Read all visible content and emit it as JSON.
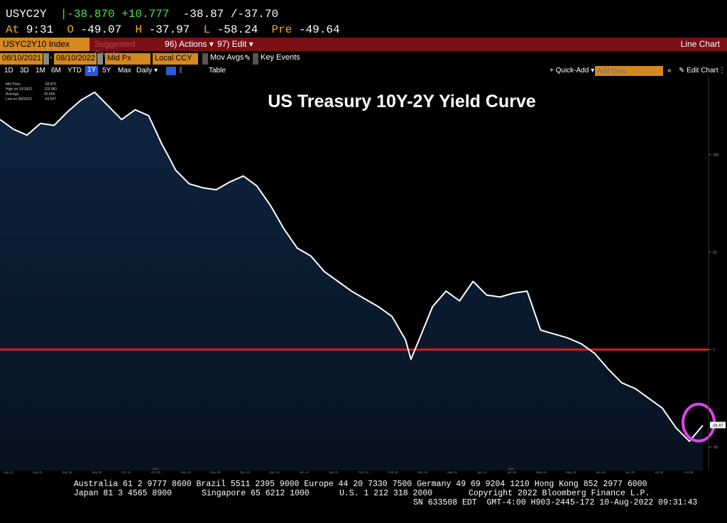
{
  "quote": {
    "symbol": "USYC2Y",
    "last": "|-38.870",
    "change": "+10.777",
    "bid": "-38.87",
    "ask_mark": "/",
    "ask": "-37.70",
    "time_label": "At",
    "time": "9:31",
    "open_label": "O",
    "open": "-49.07",
    "high_label": "H",
    "high": "-37.97",
    "low_label": "L",
    "low": "-58.24",
    "pre_label": "Pre",
    "pre": "-49.64"
  },
  "toolbar": {
    "ticker": "USYC2Y10 Index",
    "suggest": "Suggested Charts",
    "actions": "96) Actions ▾",
    "edit": "97) Edit ▾",
    "chart_type": "Line Chart"
  },
  "controls": {
    "start_date": "08/10/2021",
    "end_date": "08/10/2022",
    "price_field": "Mid Px",
    "currency": "Local CCY",
    "mov_avgs": "Mov Avgs",
    "key_events": "Key Events",
    "quick_add": "+ Quick-Add ▾",
    "add_data_placeholder": "Add Data",
    "edit_chart": "✎ Edit Chart"
  },
  "timeframes": [
    "1D",
    "3D",
    "1M",
    "6M",
    "YTD",
    "1Y",
    "5Y",
    "Max",
    "Daily ▾"
  ],
  "active_timeframe": "1Y",
  "table_label": "Table",
  "legend": {
    "mid_price": "Mid Price",
    "mid_price_val": "-38.870",
    "high": "High on 10/18/21",
    "high_val": "129.083",
    "avg": "Average",
    "avg_val": "55.656",
    "low": "Low on 08/09/22",
    "low_val": "-49.647"
  },
  "chart_data": {
    "type": "area",
    "title": "US Treasury 10Y-2Y Yield Curve",
    "xlabel": "",
    "ylabel": "",
    "ylim": [
      -62,
      140
    ],
    "y_ticks": [
      100,
      50,
      0,
      -50
    ],
    "reference_line": 0,
    "last_value_label": "-38.87",
    "x_tick_labels": [
      "Aug 13",
      "Aug 31",
      "Sep 15",
      "Sep 30",
      "Oct 15",
      "Oct 29",
      "Nov 15",
      "Nov 30",
      "Dec 15",
      "Dec 31",
      "Jan 14",
      "Jan 31",
      "Feb 14",
      "Feb 28",
      "Mar 15",
      "Mar 31",
      "Apr 14",
      "Apr 29",
      "May 16",
      "May 31",
      "Jun 15",
      "Jun 30",
      "Jul 15",
      "Jul 29"
    ],
    "year_labels": {
      "2021": "Oct 29",
      "2022": "Apr 29"
    },
    "x": [
      0,
      5,
      10,
      15,
      20,
      25,
      30,
      35,
      40,
      45,
      50,
      55,
      60,
      62,
      65,
      70,
      75,
      80,
      85,
      90,
      95,
      100,
      105,
      110,
      115,
      120,
      125,
      130,
      135,
      140,
      145,
      150,
      152,
      155,
      160,
      165,
      170,
      175,
      180,
      185,
      190,
      195,
      200,
      205,
      210,
      215,
      220,
      225,
      230,
      235,
      240,
      245,
      250,
      255,
      260
    ],
    "values": [
      118,
      113,
      110,
      116,
      115,
      122,
      128,
      132,
      125,
      118,
      123,
      120,
      105,
      100,
      92,
      85,
      83,
      82,
      86,
      89,
      84,
      74,
      62,
      52,
      48,
      40,
      35,
      30,
      26,
      22,
      17,
      5,
      -5,
      5,
      22,
      30,
      25,
      35,
      28,
      27,
      29,
      30,
      10,
      8,
      6,
      3,
      -2,
      -10,
      -17,
      -20,
      -25,
      -30,
      -40,
      -47,
      -38.87
    ],
    "colors": {
      "line": "#ffffff",
      "fill_top": "#0f2440",
      "fill_bottom": "#07121f",
      "reference": "#e0191c",
      "highlight_circle": "#e040e8"
    }
  },
  "footer": {
    "line1": "Australia 61 2 9777 8600 Brazil 5511 2395 9000 Europe 44 20 7330 7500 Germany 49 69 9204 1210 Hong Kong 852 2977 6000",
    "line2a": "Japan 81 3 4565 8900",
    "line2b": "Singapore 65 6212 1000",
    "line2c": "U.S. 1 212 318 2000",
    "line2d": "Copyright 2022 Bloomberg Finance L.P.",
    "line3": "SN 633508 EDT  GMT-4:00 H903-2445-172 10-Aug-2022 09:31:43"
  }
}
